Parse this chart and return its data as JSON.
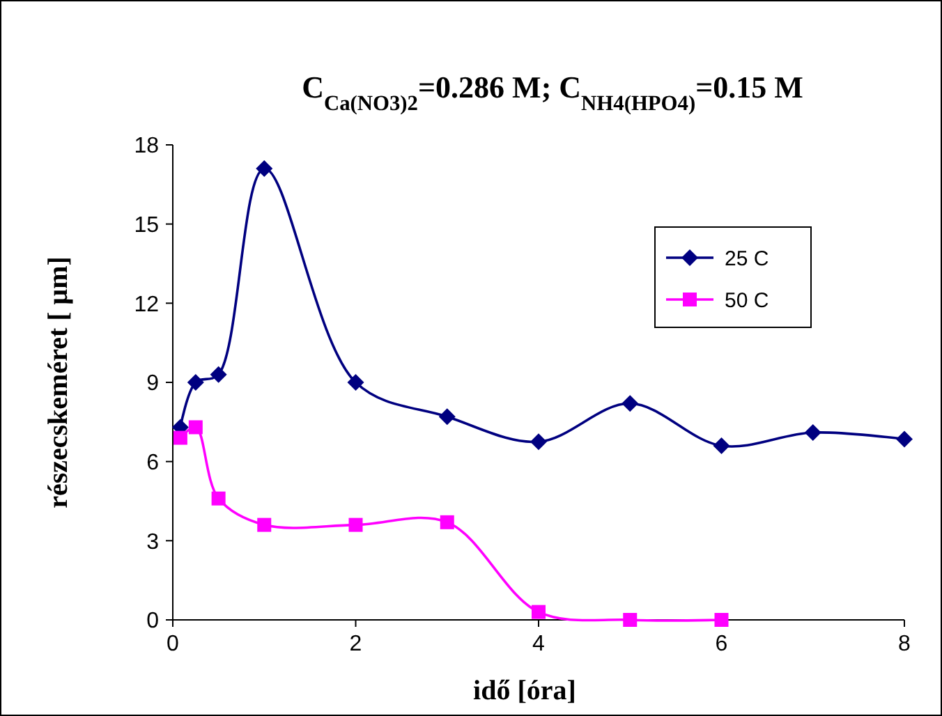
{
  "chart_data": {
    "type": "line",
    "title": "C$_{Ca(NO3)2}$=0.286 M;  C$_{NH4(HPO4)}$=0.15 M",
    "xlabel": "idő [óra]",
    "ylabel": "részecskeméret [ μm]",
    "xlim": [
      0,
      8
    ],
    "xticks": [
      0,
      2,
      4,
      6,
      8
    ],
    "ylim": [
      0,
      18
    ],
    "yticks": [
      0,
      3,
      6,
      9,
      12,
      15,
      18
    ],
    "grid": false,
    "legend": "top right",
    "line_style": "solid",
    "series": [
      {
        "name": "25 C",
        "color": "#000080",
        "marker": "diamond",
        "x": [
          0.083,
          0.25,
          0.5,
          1,
          2,
          3,
          4,
          5,
          6,
          7,
          8
        ],
        "values": [
          7.3,
          9.0,
          9.3,
          17.1,
          9.0,
          7.7,
          6.75,
          8.2,
          6.6,
          7.1,
          6.85
        ]
      },
      {
        "name": "50 C",
        "color": "#ff00ff",
        "marker": "square",
        "x": [
          0.083,
          0.25,
          0.5,
          1,
          2,
          3,
          4,
          5,
          6
        ],
        "values": [
          6.9,
          7.3,
          4.6,
          3.6,
          3.6,
          3.7,
          0.3,
          0,
          0
        ]
      }
    ]
  }
}
